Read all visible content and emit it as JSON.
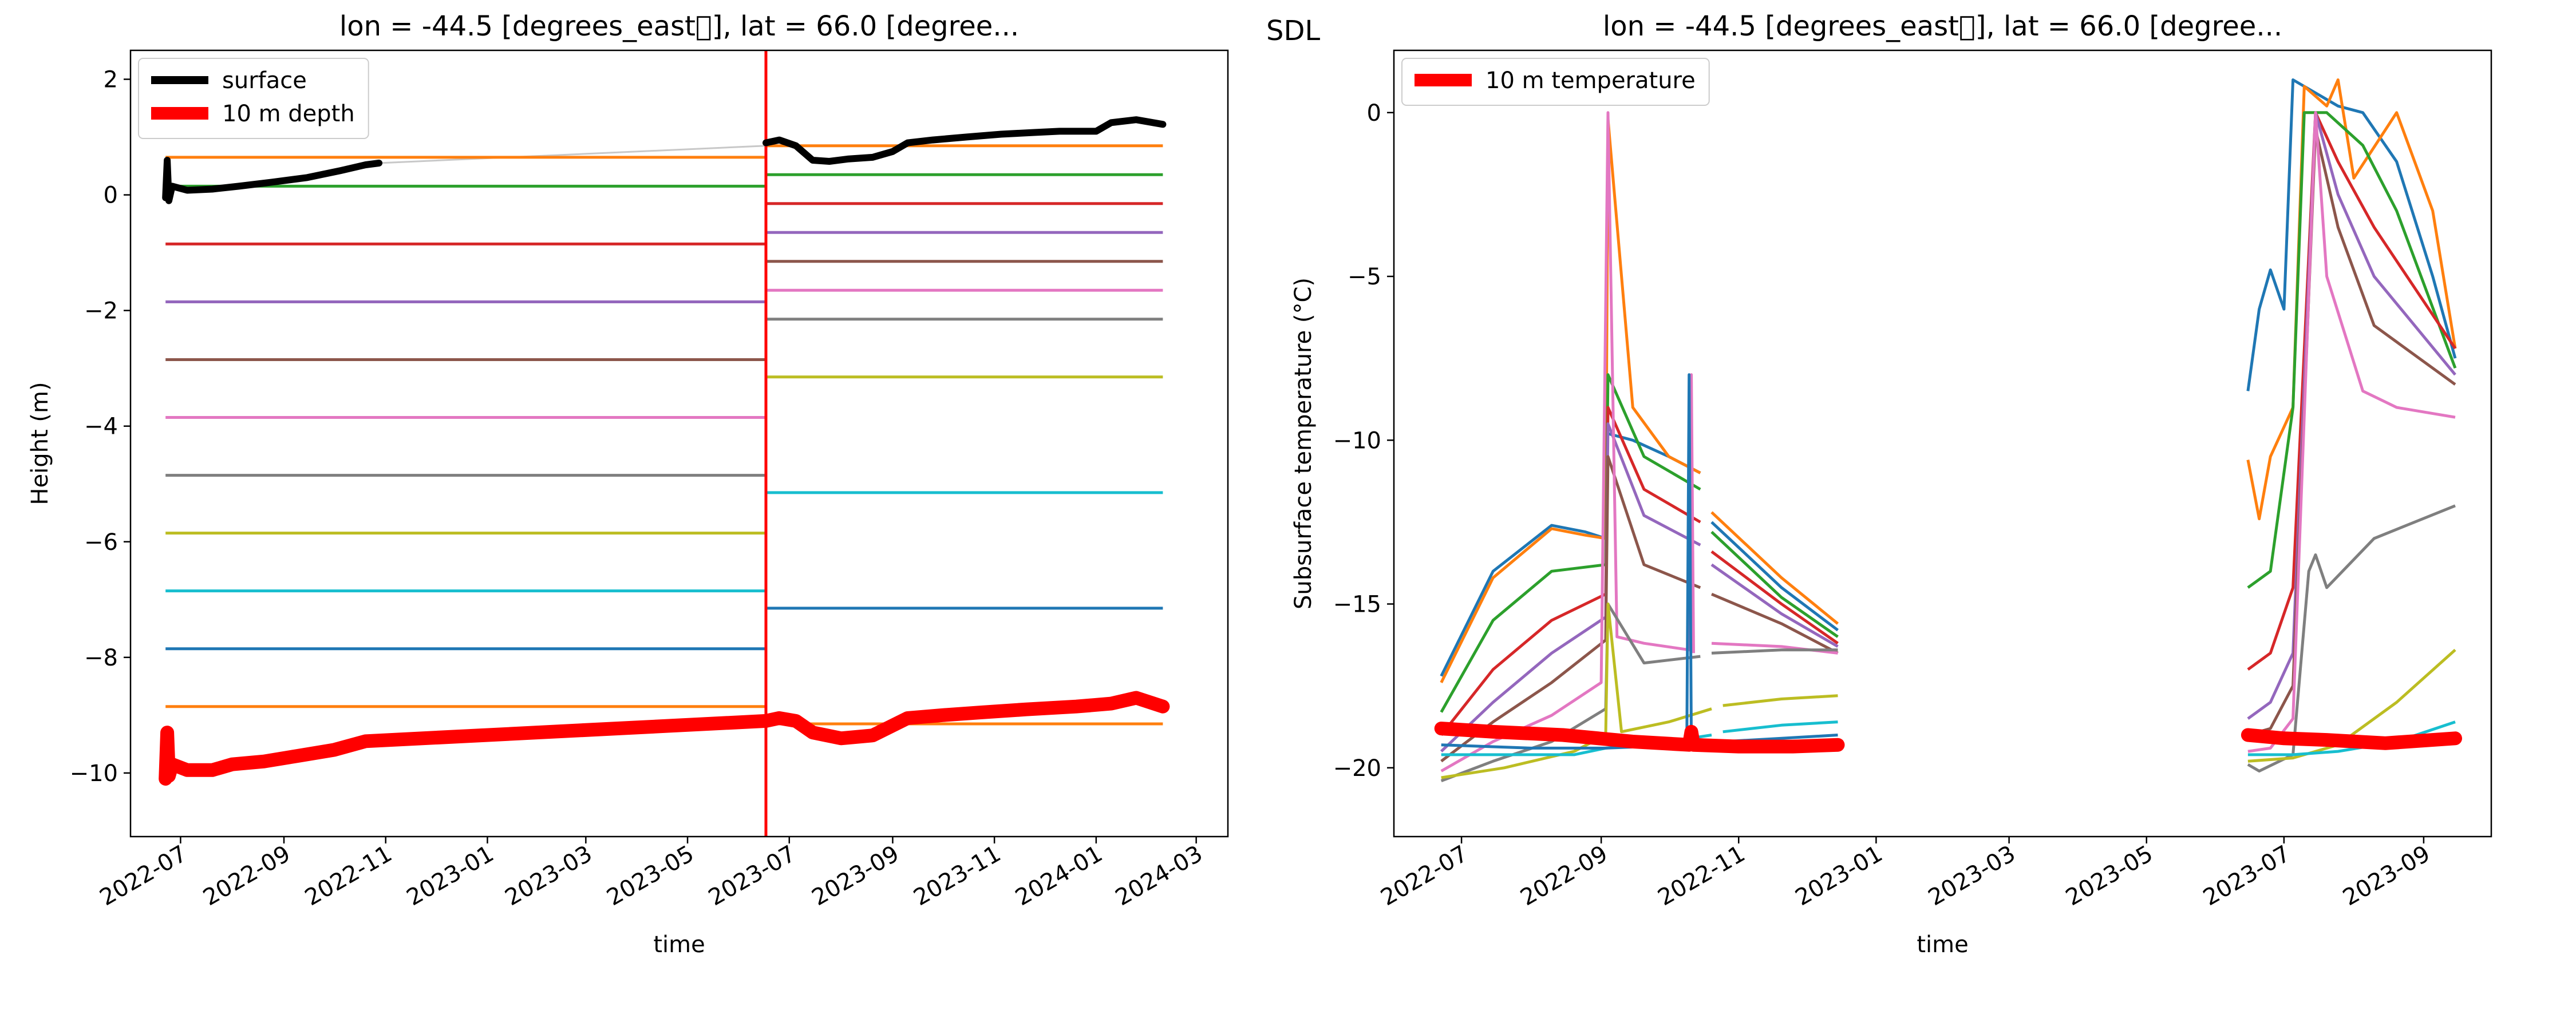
{
  "figure": {
    "label": "SDL"
  },
  "chart_data": [
    {
      "type": "line",
      "title": "lon = -44.5 [degrees_east\u0000], lat = 66.0 [degree...",
      "xlabel": "time",
      "ylabel": "Height (m)",
      "xlim": [
        "2022-06-01",
        "2024-03-20"
      ],
      "ylim": [
        -11.1,
        2.5
      ],
      "xticks": [
        "2022-07",
        "2022-09",
        "2022-11",
        "2023-01",
        "2023-03",
        "2023-05",
        "2023-07",
        "2023-09",
        "2023-11",
        "2024-01",
        "2024-03"
      ],
      "yticks": [
        2,
        0,
        -2,
        -4,
        -6,
        -8,
        -10
      ],
      "ytick_labels": [
        "2",
        "0",
        "−2",
        "−4",
        "−6",
        "−8",
        "−10"
      ],
      "legend": {
        "position": "upper-left",
        "entries": [
          {
            "label": "surface",
            "color": "#000000"
          },
          {
            "label": "10 m depth",
            "color": "#ff0000"
          }
        ]
      },
      "vline": {
        "x": "2023-06-17",
        "color": "#ff0000"
      },
      "gap_line": {
        "x": [
          "2022-10-28",
          "2023-06-17"
        ],
        "y": [
          0.55,
          0.85
        ],
        "color": "#c8c8c8"
      },
      "sensor_series": [
        {
          "color": "#ff7f0e",
          "x": [
            "2022-06-22",
            "2023-06-17",
            "2023-06-17",
            "2024-02-10"
          ],
          "y": [
            0.65,
            0.65,
            0.85,
            0.85
          ]
        },
        {
          "color": "#2ca02c",
          "x": [
            "2022-06-22",
            "2023-06-17",
            "2023-06-17",
            "2024-02-10"
          ],
          "y": [
            0.15,
            0.15,
            0.35,
            0.35
          ]
        },
        {
          "color": "#d62728",
          "x": [
            "2022-06-22",
            "2023-06-17",
            "2023-06-17",
            "2024-02-10"
          ],
          "y": [
            -0.85,
            -0.85,
            -0.15,
            -0.15
          ]
        },
        {
          "color": "#9467bd",
          "x": [
            "2022-06-22",
            "2023-06-17",
            "2023-06-17",
            "2024-02-10"
          ],
          "y": [
            -1.85,
            -1.85,
            -0.65,
            -0.65
          ]
        },
        {
          "color": "#8c564b",
          "x": [
            "2022-06-22",
            "2023-06-17",
            "2023-06-17",
            "2024-02-10"
          ],
          "y": [
            -2.85,
            -2.85,
            -1.15,
            -1.15
          ]
        },
        {
          "color": "#e377c2",
          "x": [
            "2022-06-22",
            "2023-06-17",
            "2023-06-17",
            "2024-02-10"
          ],
          "y": [
            -3.85,
            -3.85,
            -1.65,
            -1.65
          ]
        },
        {
          "color": "#7f7f7f",
          "x": [
            "2022-06-22",
            "2023-06-17",
            "2023-06-17",
            "2024-02-10"
          ],
          "y": [
            -4.85,
            -4.85,
            -2.15,
            -2.15
          ]
        },
        {
          "color": "#bcbd22",
          "x": [
            "2022-06-22",
            "2023-06-17",
            "2023-06-17",
            "2024-02-10"
          ],
          "y": [
            -5.85,
            -5.85,
            -3.15,
            -3.15
          ]
        },
        {
          "color": "#17becf",
          "x": [
            "2022-06-22",
            "2023-06-17",
            "2023-06-17",
            "2024-02-10"
          ],
          "y": [
            -6.85,
            -6.85,
            -5.15,
            -5.15
          ]
        },
        {
          "color": "#1f77b4",
          "x": [
            "2022-06-22",
            "2023-06-17",
            "2023-06-17",
            "2024-02-10"
          ],
          "y": [
            -7.85,
            -7.85,
            -7.15,
            -7.15
          ]
        },
        {
          "color": "#ff7f0e",
          "x": [
            "2022-06-22",
            "2023-06-17",
            "2023-06-17",
            "2024-02-10"
          ],
          "y": [
            -8.85,
            -8.85,
            -9.15,
            -9.15
          ]
        }
      ],
      "series": [
        {
          "name": "surface",
          "color": "#000000",
          "x": [
            "2022-06-22",
            "2022-06-23",
            "2022-06-24",
            "2022-06-26",
            "2022-07-05",
            "2022-07-20",
            "2022-08-05",
            "2022-08-25",
            "2022-09-15",
            "2022-10-05",
            "2022-10-20",
            "2022-10-28",
            null,
            "2023-06-17",
            "2023-06-25",
            "2023-07-05",
            "2023-07-15",
            "2023-07-25",
            "2023-08-05",
            "2023-08-20",
            "2023-09-01",
            "2023-09-10",
            "2023-09-25",
            "2023-10-15",
            "2023-11-05",
            "2023-11-25",
            "2023-12-10",
            "2024-01-01",
            "2024-01-10",
            "2024-01-25",
            "2024-02-10"
          ],
          "y": [
            -0.05,
            0.6,
            -0.1,
            0.15,
            0.08,
            0.1,
            0.15,
            0.22,
            0.3,
            0.42,
            0.52,
            0.55,
            null,
            0.9,
            0.95,
            0.85,
            0.6,
            0.58,
            0.62,
            0.65,
            0.75,
            0.9,
            0.95,
            1.0,
            1.05,
            1.08,
            1.1,
            1.1,
            1.25,
            1.3,
            1.22
          ]
        },
        {
          "name": "10 m depth",
          "color": "#ff0000",
          "x": [
            "2022-06-22",
            "2022-06-23",
            "2022-06-24",
            "2022-06-26",
            "2022-07-05",
            "2022-07-20",
            "2022-08-01",
            "2022-08-20",
            "2022-09-10",
            "2022-10-01",
            "2022-10-20",
            "2023-06-17",
            "2023-06-25",
            "2023-07-05",
            "2023-07-15",
            "2023-08-01",
            "2023-08-20",
            "2023-09-10",
            "2023-10-01",
            "2023-10-25",
            "2023-11-20",
            "2023-12-20",
            "2024-01-10",
            "2024-01-25",
            "2024-02-10"
          ],
          "y": [
            -10.1,
            -9.3,
            -10.05,
            -9.85,
            -9.95,
            -9.95,
            -9.85,
            -9.8,
            -9.7,
            -9.6,
            -9.45,
            -9.1,
            -9.05,
            -9.1,
            -9.3,
            -9.4,
            -9.35,
            -9.05,
            -9.0,
            -8.95,
            -8.9,
            -8.85,
            -8.8,
            -8.7,
            -8.85
          ]
        }
      ]
    },
    {
      "type": "line",
      "title": "lon = -44.5 [degrees_east\u0000], lat = 66.0 [degree...",
      "xlabel": "time",
      "ylabel": "Subsurface temperature (°C)",
      "xlim": [
        "2022-06-01",
        "2023-10-01"
      ],
      "ylim": [
        -22.1,
        1.9
      ],
      "xticks": [
        "2022-07",
        "2022-09",
        "2022-11",
        "2023-01",
        "2023-03",
        "2023-05",
        "2023-07",
        "2023-09"
      ],
      "yticks": [
        0,
        -5,
        -10,
        -15,
        -20
      ],
      "ytick_labels": [
        "0",
        "−5",
        "−10",
        "−15",
        "−20"
      ],
      "legend": {
        "position": "upper-left",
        "entries": [
          {
            "label": "10 m temperature",
            "color": "#ff0000"
          }
        ]
      },
      "sensor_series": [
        {
          "color": "#1f77b4",
          "x": [
            "2022-06-22",
            "2022-07-15",
            "2022-08-10",
            "2022-08-25",
            "2022-09-03",
            null,
            "2022-09-04",
            "2022-09-15",
            "2022-10-01",
            "2022-10-15",
            null,
            "2022-10-20",
            "2022-11-20",
            "2022-12-15",
            null,
            "2023-06-15",
            "2023-06-20",
            "2023-06-25",
            "2023-07-01",
            "2023-07-05",
            "2023-07-15",
            "2023-07-25",
            "2023-08-05",
            "2023-08-20",
            "2023-09-05",
            "2023-09-15"
          ],
          "y": [
            -17.2,
            -14.0,
            -12.6,
            -12.8,
            -13.0,
            null,
            -9.8,
            -10.0,
            -10.5,
            -11.0,
            null,
            -12.5,
            -14.5,
            -15.8,
            null,
            -8.5,
            -6.0,
            -4.8,
            -6.0,
            1.0,
            0.6,
            0.2,
            0.0,
            -1.5,
            -5.0,
            -7.5
          ]
        },
        {
          "color": "#ff7f0e",
          "x": [
            "2022-06-22",
            "2022-07-15",
            "2022-08-10",
            "2022-08-25",
            "2022-09-03",
            "2022-09-04",
            "2022-09-15",
            "2022-10-01",
            "2022-10-15",
            null,
            "2022-10-20",
            "2022-11-20",
            "2022-12-15",
            null,
            "2023-06-15",
            "2023-06-20",
            "2023-06-25",
            "2023-07-05",
            "2023-07-10",
            "2023-07-20",
            "2023-07-25",
            "2023-08-01",
            "2023-08-20",
            "2023-09-05",
            "2023-09-15"
          ],
          "y": [
            -17.4,
            -14.2,
            -12.7,
            -12.9,
            -13.0,
            -0.2,
            -9.0,
            -10.5,
            -11.0,
            null,
            -12.2,
            -14.2,
            -15.6,
            null,
            -10.6,
            -12.4,
            -10.5,
            -9.0,
            0.8,
            0.2,
            1.0,
            -2.0,
            0.0,
            -3.0,
            -7.2
          ]
        },
        {
          "color": "#2ca02c",
          "x": [
            "2022-06-22",
            "2022-07-15",
            "2022-08-10",
            "2022-09-03",
            "2022-09-04",
            "2022-09-20",
            "2022-10-15",
            null,
            "2022-10-20",
            "2022-11-20",
            "2022-12-15",
            null,
            "2023-06-15",
            "2023-06-25",
            "2023-07-05",
            "2023-07-10",
            "2023-07-20",
            "2023-08-05",
            "2023-08-20",
            "2023-09-15"
          ],
          "y": [
            -18.3,
            -15.5,
            -14.0,
            -13.8,
            -8.0,
            -10.5,
            -11.5,
            null,
            -12.8,
            -14.8,
            -16.0,
            null,
            -14.5,
            -14.0,
            -9.0,
            0.0,
            0.0,
            -1.0,
            -3.0,
            -7.8
          ]
        },
        {
          "color": "#d62728",
          "x": [
            "2022-06-22",
            "2022-07-15",
            "2022-08-10",
            "2022-09-03",
            "2022-09-04",
            "2022-09-20",
            "2022-10-15",
            null,
            "2022-10-20",
            "2022-11-20",
            "2022-12-15",
            null,
            "2023-06-15",
            "2023-06-25",
            "2023-07-05",
            "2023-07-15",
            "2023-07-25",
            "2023-08-10",
            "2023-09-15"
          ],
          "y": [
            -19.0,
            -17.0,
            -15.5,
            -14.7,
            -9.0,
            -11.5,
            -12.5,
            null,
            -13.4,
            -15.0,
            -16.2,
            null,
            -17.0,
            -16.5,
            -14.5,
            0.0,
            -1.5,
            -3.5,
            -7.2
          ]
        },
        {
          "color": "#9467bd",
          "x": [
            "2022-06-22",
            "2022-07-15",
            "2022-08-10",
            "2022-09-03",
            "2022-09-04",
            "2022-09-20",
            "2022-10-15",
            null,
            "2022-10-20",
            "2022-11-20",
            "2022-12-15",
            null,
            "2023-06-15",
            "2023-06-25",
            "2023-07-05",
            "2023-07-15",
            "2023-07-25",
            "2023-08-10",
            "2023-09-15"
          ],
          "y": [
            -19.5,
            -18.0,
            -16.5,
            -15.4,
            -9.5,
            -12.3,
            -13.2,
            null,
            -13.8,
            -15.3,
            -16.3,
            null,
            -18.5,
            -18.0,
            -16.5,
            0.0,
            -2.5,
            -5.0,
            -8.0
          ]
        },
        {
          "color": "#8c564b",
          "x": [
            "2022-06-22",
            "2022-07-15",
            "2022-08-10",
            "2022-09-03",
            "2022-09-04",
            "2022-09-20",
            "2022-10-15",
            null,
            "2022-10-20",
            "2022-11-20",
            "2022-12-15",
            null,
            "2023-06-15",
            "2023-06-25",
            "2023-07-05",
            "2023-07-15",
            "2023-07-25",
            "2023-08-10",
            "2023-09-15"
          ],
          "y": [
            -19.8,
            -18.6,
            -17.4,
            -16.1,
            -10.5,
            -13.8,
            -14.5,
            null,
            -14.7,
            -15.6,
            -16.5,
            null,
            -19.0,
            -18.8,
            -17.5,
            -0.5,
            -3.5,
            -6.5,
            -8.3
          ]
        },
        {
          "color": "#e377c2",
          "x": [
            "2022-06-22",
            "2022-07-15",
            "2022-08-10",
            "2022-09-01",
            "2022-09-04",
            "2022-09-08",
            "2022-09-20",
            "2022-10-10",
            "2022-10-11",
            "2022-10-12",
            null,
            "2022-10-20",
            "2022-11-20",
            "2022-12-15",
            null,
            "2023-06-15",
            "2023-06-25",
            "2023-07-05",
            "2023-07-15",
            "2023-07-20",
            "2023-08-05",
            "2023-08-20",
            "2023-09-15"
          ],
          "y": [
            -20.1,
            -19.2,
            -18.4,
            -17.4,
            0.0,
            -16.0,
            -16.2,
            -16.4,
            -8.0,
            -16.5,
            null,
            -16.2,
            -16.3,
            -16.5,
            null,
            -19.5,
            -19.4,
            -18.5,
            0.0,
            -5.0,
            -8.5,
            -9.0,
            -9.3
          ]
        },
        {
          "color": "#7f7f7f",
          "x": [
            "2022-06-22",
            "2022-07-15",
            "2022-08-10",
            "2022-09-03",
            "2022-09-04",
            "2022-09-20",
            "2022-10-15",
            null,
            "2022-10-20",
            "2022-11-20",
            "2022-12-15",
            null,
            "2023-06-15",
            "2023-06-20",
            "2023-07-05",
            "2023-07-12",
            "2023-07-15",
            "2023-07-20",
            "2023-08-10",
            "2023-09-15"
          ],
          "y": [
            -20.4,
            -19.8,
            -19.2,
            -18.2,
            -15.0,
            -16.8,
            -16.6,
            null,
            -16.5,
            -16.4,
            -16.4,
            null,
            -19.9,
            -20.1,
            -19.6,
            -14.0,
            -13.5,
            -14.5,
            -13.0,
            -12.0
          ]
        },
        {
          "color": "#bcbd22",
          "x": [
            "2022-06-22",
            "2022-07-20",
            "2022-08-20",
            "2022-09-03",
            "2022-09-04",
            "2022-09-10",
            "2022-10-01",
            "2022-10-20",
            null,
            "2022-10-25",
            "2022-11-20",
            "2022-12-15",
            null,
            "2023-06-15",
            "2023-07-05",
            "2023-07-25",
            "2023-08-20",
            "2023-09-15"
          ],
          "y": [
            -20.3,
            -20.0,
            -19.5,
            -19.0,
            -15.0,
            -18.9,
            -18.6,
            -18.2,
            null,
            -18.1,
            -17.9,
            -17.8,
            null,
            -19.8,
            -19.7,
            -19.3,
            -18.0,
            -16.4
          ]
        },
        {
          "color": "#17becf",
          "x": [
            "2022-06-22",
            "2022-07-20",
            "2022-08-20",
            "2022-09-03",
            "2022-10-01",
            "2022-10-20",
            null,
            "2022-10-25",
            "2022-11-20",
            "2022-12-15",
            null,
            "2023-06-15",
            "2023-07-05",
            "2023-07-25",
            "2023-08-20",
            "2023-09-15"
          ],
          "y": [
            -19.6,
            -19.6,
            -19.6,
            -19.4,
            -19.2,
            -19.0,
            null,
            -18.9,
            -18.7,
            -18.6,
            null,
            -19.6,
            -19.6,
            -19.5,
            -19.2,
            -18.6
          ]
        },
        {
          "color": "#1f77b4",
          "x": [
            "2022-06-22",
            "2022-08-01",
            "2022-09-03",
            "2022-10-09",
            "2022-10-10",
            "2022-10-11",
            "2022-10-20",
            null,
            "2022-10-25",
            "2022-11-20",
            "2022-12-15"
          ],
          "y": [
            -19.3,
            -19.4,
            -19.4,
            -19.3,
            -8.0,
            -19.3,
            -19.3,
            null,
            -19.2,
            -19.1,
            -19.0
          ]
        }
      ],
      "series": [
        {
          "name": "10 m temperature",
          "color": "#ff0000",
          "x": [
            "2022-06-22",
            "2022-07-15",
            "2022-08-15",
            "2022-09-15",
            "2022-10-10",
            "2022-10-11",
            "2022-10-12",
            "2022-11-01",
            "2022-11-25",
            "2022-12-15",
            null,
            "2023-06-15",
            "2023-07-01",
            "2023-07-20",
            "2023-08-15",
            "2023-09-15"
          ],
          "y": [
            -18.8,
            -18.9,
            -19.0,
            -19.2,
            -19.3,
            -18.9,
            -19.3,
            -19.35,
            -19.35,
            -19.3,
            null,
            -19.0,
            -19.1,
            -19.15,
            -19.25,
            -19.1
          ]
        }
      ]
    }
  ]
}
